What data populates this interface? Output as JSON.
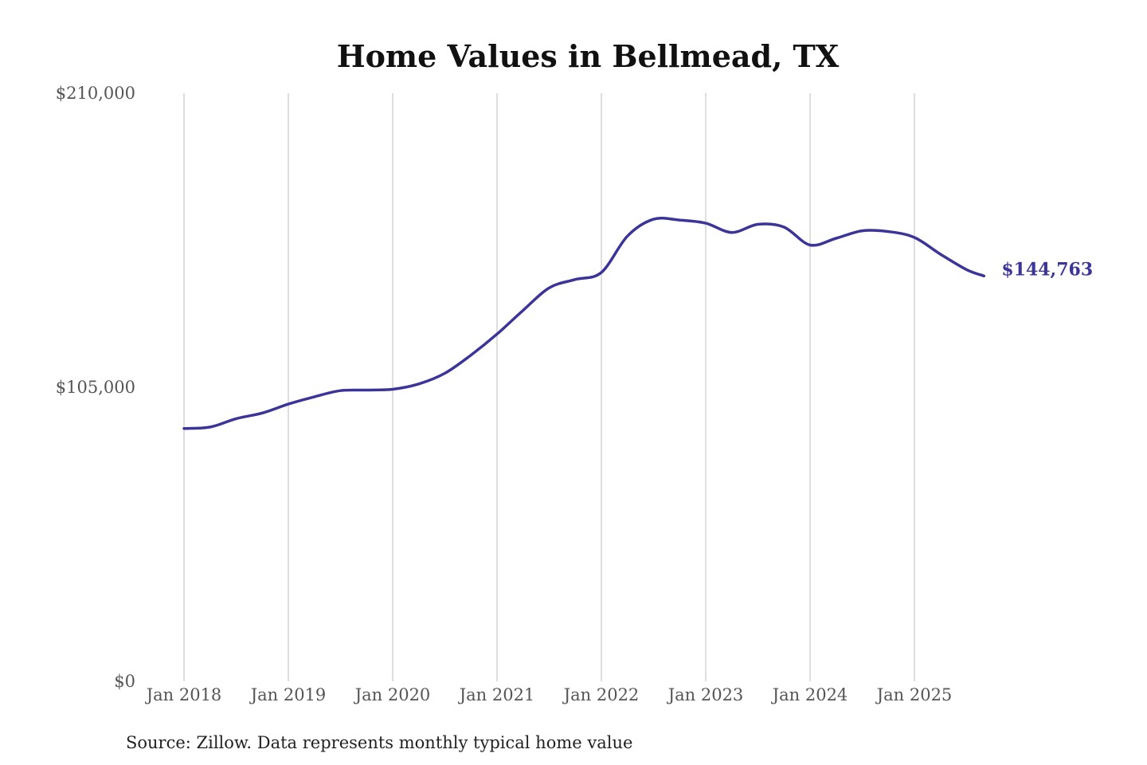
{
  "chart_data": {
    "type": "line",
    "title": "Home Values in Bellmead, TX",
    "xlabel": "",
    "ylabel": "",
    "ylim": [
      0,
      210000
    ],
    "xlim": [
      "2018-01",
      "2025-09"
    ],
    "grid": {
      "x": true,
      "y": false
    },
    "x_tick_labels": [
      {
        "date": "2018-01",
        "label": "Jan 2018"
      },
      {
        "date": "2019-01",
        "label": "Jan 2019"
      },
      {
        "date": "2020-01",
        "label": "Jan 2020"
      },
      {
        "date": "2021-01",
        "label": "Jan 2021"
      },
      {
        "date": "2022-01",
        "label": "Jan 2022"
      },
      {
        "date": "2023-01",
        "label": "Jan 2023"
      },
      {
        "date": "2024-01",
        "label": "Jan 2024"
      },
      {
        "date": "2025-01",
        "label": "Jan 2025"
      }
    ],
    "y_tick_labels": [
      {
        "value": 0,
        "label": "$0"
      },
      {
        "value": 105000,
        "label": "$105,000"
      },
      {
        "value": 210000,
        "label": "$210,000"
      }
    ],
    "series": [
      {
        "color": "#3b3499",
        "end_label": "$144,763",
        "points": [
          {
            "x": "2018-01",
            "y": 90300
          },
          {
            "x": "2018-04",
            "y": 90800
          },
          {
            "x": "2018-07",
            "y": 93800
          },
          {
            "x": "2018-10",
            "y": 95800
          },
          {
            "x": "2019-01",
            "y": 99000
          },
          {
            "x": "2019-04",
            "y": 101600
          },
          {
            "x": "2019-07",
            "y": 103800
          },
          {
            "x": "2019-10",
            "y": 104000
          },
          {
            "x": "2020-01",
            "y": 104300
          },
          {
            "x": "2020-04",
            "y": 106200
          },
          {
            "x": "2020-07",
            "y": 110000
          },
          {
            "x": "2020-10",
            "y": 116500
          },
          {
            "x": "2021-01",
            "y": 124000
          },
          {
            "x": "2021-04",
            "y": 132500
          },
          {
            "x": "2021-07",
            "y": 140500
          },
          {
            "x": "2021-10",
            "y": 143500
          },
          {
            "x": "2022-01",
            "y": 146000
          },
          {
            "x": "2022-04",
            "y": 159000
          },
          {
            "x": "2022-07",
            "y": 165000
          },
          {
            "x": "2022-10",
            "y": 164700
          },
          {
            "x": "2023-01",
            "y": 163600
          },
          {
            "x": "2023-04",
            "y": 160300
          },
          {
            "x": "2023-07",
            "y": 163200
          },
          {
            "x": "2023-10",
            "y": 162200
          },
          {
            "x": "2024-01",
            "y": 155800
          },
          {
            "x": "2024-04",
            "y": 158200
          },
          {
            "x": "2024-07",
            "y": 160900
          },
          {
            "x": "2024-10",
            "y": 160600
          },
          {
            "x": "2025-01",
            "y": 158500
          },
          {
            "x": "2025-04",
            "y": 152500
          },
          {
            "x": "2025-07",
            "y": 147000
          },
          {
            "x": "2025-09",
            "y": 144763
          }
        ]
      }
    ]
  },
  "footer": {
    "source_note": "Source: Zillow. Data represents monthly typical home value"
  }
}
